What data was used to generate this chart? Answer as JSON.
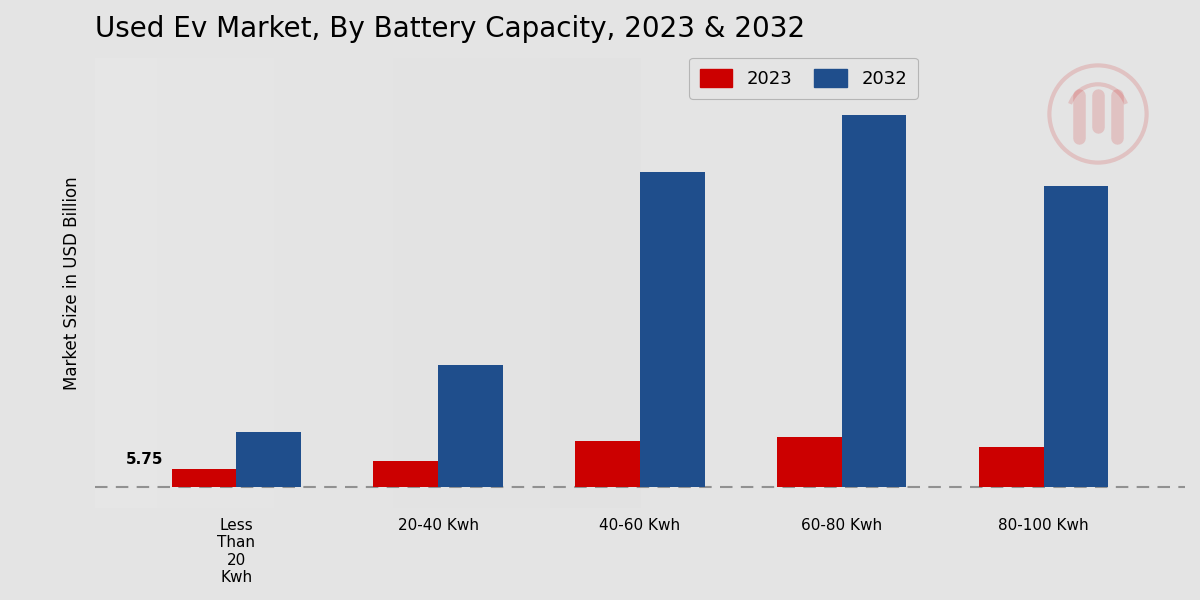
{
  "title": "Used Ev Market, By Battery Capacity, 2023 & 2032",
  "ylabel": "Market Size in USD Billion",
  "categories": [
    "Less\nThan\n20\nKwh",
    "20-40 Kwh",
    "40-60 Kwh",
    "60-80 Kwh",
    "80-100 Kwh"
  ],
  "values_2023": [
    1.2,
    1.8,
    3.2,
    3.5,
    2.8
  ],
  "values_2032": [
    3.8,
    8.5,
    22.0,
    26.0,
    21.0
  ],
  "color_2023": "#cc0000",
  "color_2032": "#1f4e8c",
  "annotation_text": "5.75",
  "annotation_bar_index": 0,
  "legend_labels": [
    "2023",
    "2032"
  ],
  "background_color": "#e4e4e4",
  "bar_width": 0.32,
  "title_fontsize": 20,
  "label_fontsize": 12,
  "tick_fontsize": 11,
  "ylim_min": -1.5,
  "ylim_max": 30
}
